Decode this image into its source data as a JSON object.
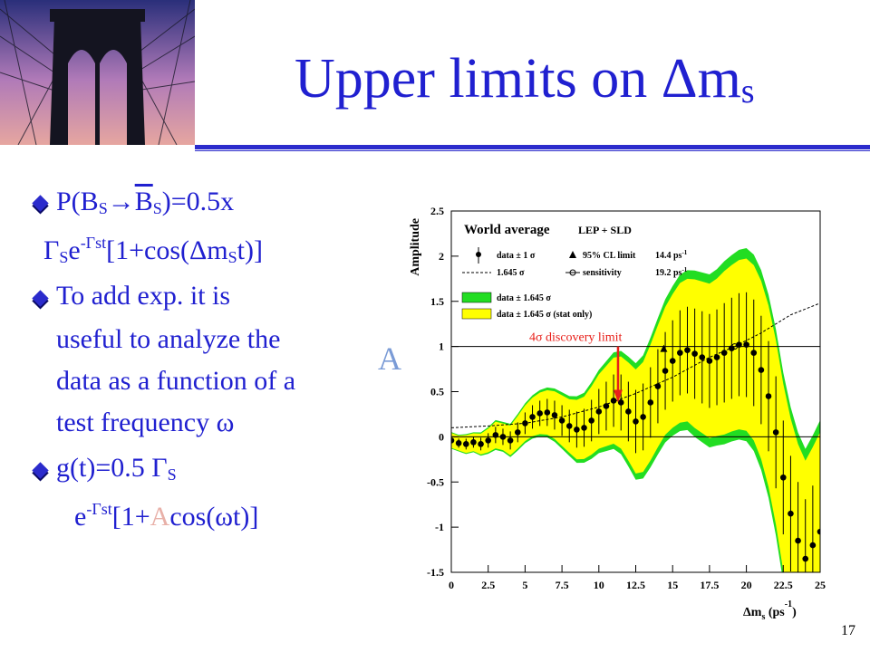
{
  "slide": {
    "title_main": "Upper limits on Δm",
    "title_sub": "s",
    "number": "17",
    "big_symbol": "A",
    "b1": {
      "a": "P(B",
      "b": "S",
      "c": "→",
      "d": "B",
      "e": "S",
      "f": ")=0.5x"
    },
    "b2": {
      "a": "Γ",
      "b": "S",
      "c": "e",
      "d": "-Γst",
      "e": "[1+cos(Δm",
      "f": "S",
      "g": "t)]"
    },
    "b3": [
      "To add exp. it is",
      "useful to analyze the",
      "data as a function of a",
      "test frequency ω"
    ],
    "b4": {
      "a": "g(t)=0.5 Γ",
      "b": "S"
    },
    "b5": {
      "a": "e",
      "b": "-Γst",
      "c": "[1+",
      "d": "A",
      "e": "cos(ωt)]"
    }
  },
  "chart_data": {
    "type": "line",
    "xlabel": "Δm",
    "xlabel_sub": "s",
    "xlabel_unit": "(ps",
    "xlabel_exp": "-1",
    "xlabel_close": ")",
    "ylabel": "Amplitude",
    "xlim": [
      0,
      25
    ],
    "ylim": [
      -1.5,
      2.5
    ],
    "xticks": [
      "0",
      "2.5",
      "5",
      "7.5",
      "10",
      "12.5",
      "15",
      "17.5",
      "20",
      "22.5",
      "25"
    ],
    "yticks": [
      "-1.5",
      "-1",
      "-0.5",
      "0",
      "0.5",
      "1",
      "1.5",
      "2",
      "2.5"
    ],
    "legend": {
      "title": "World average",
      "tag": "LEP + SLD",
      "entries": [
        "data ± 1 σ",
        "1.645 σ",
        "95% CL limit",
        "sensitivity",
        "data ± 1.645 σ",
        "data ± 1.645 σ (stat only)"
      ],
      "limit_value": "14.4 ps",
      "limit_exp": "-1",
      "sensitivity_value": "19.2 ps",
      "sensitivity_exp": "-1"
    },
    "annotation": "4σ discovery limit",
    "annotation_x": 11.3,
    "cl_limit": 14.4,
    "sensitivity": 19.2,
    "colors": {
      "inner_band": "#ffff00",
      "outer_band": "#22dd22",
      "annotation": "#e8201a",
      "data": "#000000"
    },
    "points": [
      [
        0.0,
        -0.04,
        0.05
      ],
      [
        0.5,
        -0.07,
        0.05
      ],
      [
        1.0,
        -0.08,
        0.06
      ],
      [
        1.5,
        -0.06,
        0.06
      ],
      [
        2.0,
        -0.08,
        0.07
      ],
      [
        2.5,
        -0.04,
        0.08
      ],
      [
        3.0,
        0.02,
        0.09
      ],
      [
        3.5,
        0.0,
        0.09
      ],
      [
        4.0,
        -0.04,
        0.1
      ],
      [
        4.5,
        0.05,
        0.11
      ],
      [
        5.0,
        0.15,
        0.12
      ],
      [
        5.5,
        0.22,
        0.13
      ],
      [
        6.0,
        0.26,
        0.14
      ],
      [
        6.5,
        0.27,
        0.15
      ],
      [
        7.0,
        0.24,
        0.16
      ],
      [
        7.5,
        0.18,
        0.17
      ],
      [
        8.0,
        0.12,
        0.18
      ],
      [
        8.5,
        0.08,
        0.2
      ],
      [
        9.0,
        0.1,
        0.21
      ],
      [
        9.5,
        0.18,
        0.23
      ],
      [
        10.0,
        0.28,
        0.25
      ],
      [
        10.5,
        0.34,
        0.27
      ],
      [
        11.0,
        0.4,
        0.29
      ],
      [
        11.5,
        0.38,
        0.31
      ],
      [
        12.0,
        0.28,
        0.33
      ],
      [
        12.5,
        0.17,
        0.35
      ],
      [
        13.0,
        0.22,
        0.37
      ],
      [
        13.5,
        0.38,
        0.39
      ],
      [
        14.0,
        0.56,
        0.41
      ],
      [
        14.5,
        0.73,
        0.43
      ],
      [
        15.0,
        0.84,
        0.45
      ],
      [
        15.5,
        0.93,
        0.47
      ],
      [
        16.0,
        0.96,
        0.48
      ],
      [
        16.5,
        0.92,
        0.5
      ],
      [
        17.0,
        0.88,
        0.51
      ],
      [
        17.5,
        0.84,
        0.52
      ],
      [
        18.0,
        0.88,
        0.53
      ],
      [
        18.5,
        0.93,
        0.55
      ],
      [
        19.0,
        0.98,
        0.56
      ],
      [
        19.5,
        1.02,
        0.57
      ],
      [
        20.0,
        1.02,
        0.58
      ],
      [
        20.5,
        0.93,
        0.59
      ],
      [
        21.0,
        0.74,
        0.6
      ],
      [
        21.5,
        0.45,
        0.61
      ],
      [
        22.0,
        0.05,
        0.62
      ],
      [
        22.5,
        -0.45,
        0.63
      ],
      [
        23.0,
        -0.85,
        0.64
      ],
      [
        23.5,
        -1.15,
        0.65
      ],
      [
        24.0,
        -1.35,
        0.66
      ],
      [
        24.5,
        -1.2,
        0.66
      ],
      [
        25.0,
        -1.05,
        0.67
      ]
    ],
    "sensitivity_curve": [
      [
        0,
        0.1
      ],
      [
        2.5,
        0.12
      ],
      [
        5,
        0.15
      ],
      [
        7.5,
        0.22
      ],
      [
        10,
        0.33
      ],
      [
        12.5,
        0.48
      ],
      [
        15,
        0.66
      ],
      [
        17.5,
        0.88
      ],
      [
        19.2,
        1.0
      ],
      [
        21,
        1.15
      ],
      [
        23,
        1.35
      ],
      [
        25,
        1.48
      ]
    ]
  }
}
